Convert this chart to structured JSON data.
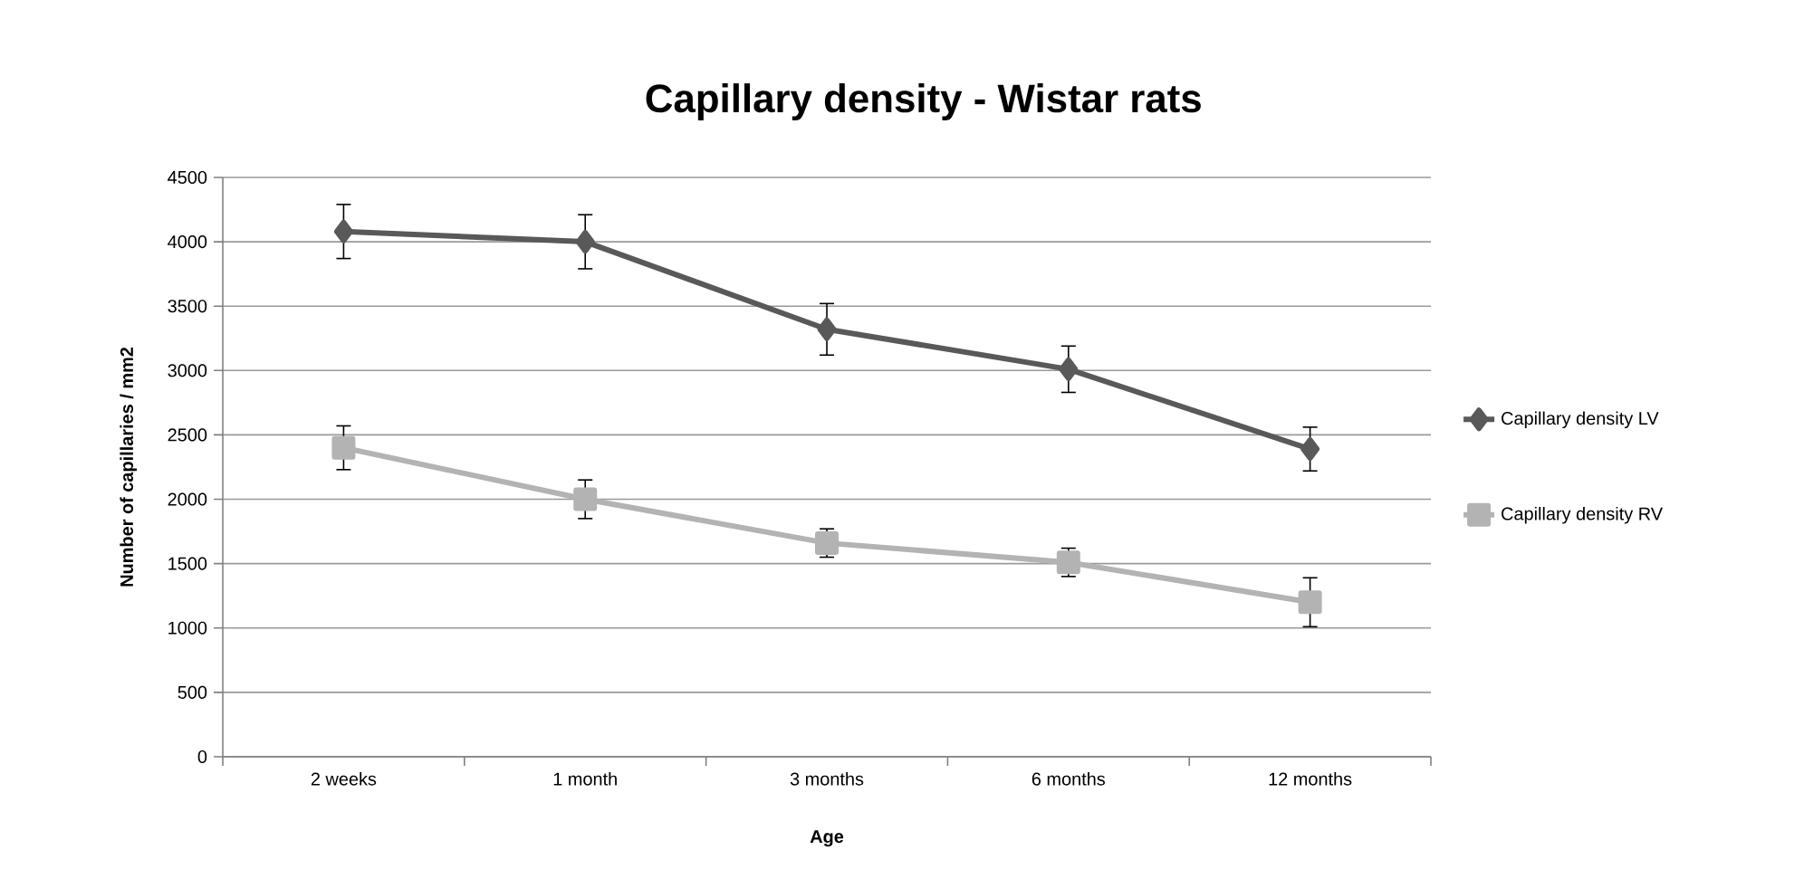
{
  "chart_data": {
    "type": "line",
    "title": "Capillary density - Wistar rats",
    "xlabel": "Age",
    "ylabel": "Number of capillaries / mm2",
    "categories": [
      "2 weeks",
      "1 month",
      "3 months",
      "6 months",
      "12 months"
    ],
    "series": [
      {
        "name": "Capillary density LV",
        "color": "#595959",
        "marker": "diamond",
        "values": [
          4080,
          4000,
          3320,
          3010,
          2390
        ],
        "errors": [
          210,
          210,
          200,
          180,
          170
        ]
      },
      {
        "name": "Capillary density RV",
        "color": "#b3b3b3",
        "marker": "square",
        "values": [
          2400,
          2000,
          1660,
          1510,
          1200
        ],
        "errors": [
          170,
          150,
          110,
          110,
          190
        ]
      }
    ],
    "ylim": [
      0,
      4500
    ],
    "yticks": [
      0,
      500,
      1000,
      1500,
      2000,
      2500,
      3000,
      3500,
      4000,
      4500
    ],
    "grid": "y",
    "legend": "right",
    "line_style": "solid"
  }
}
